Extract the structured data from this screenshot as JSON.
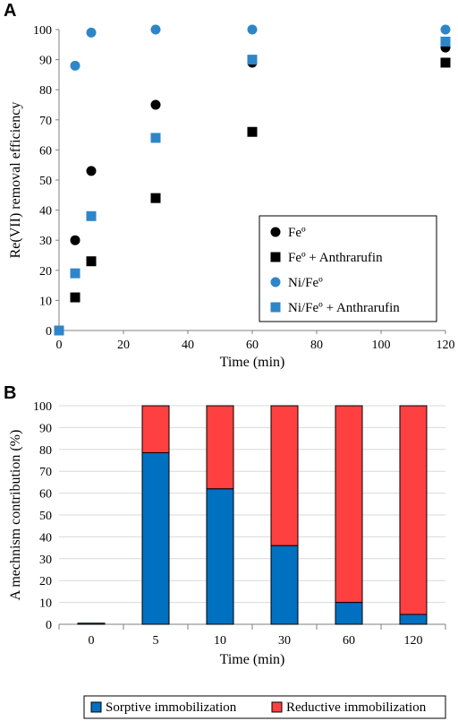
{
  "chart_data": [
    {
      "panel": "A",
      "type": "scatter",
      "xlabel": "Time (min)",
      "ylabel": "Re(VII) removal efficiency",
      "xlim": [
        0,
        120
      ],
      "ylim": [
        0,
        100
      ],
      "xticks": [
        0,
        20,
        40,
        60,
        80,
        100,
        120
      ],
      "yticks": [
        0,
        10,
        20,
        30,
        40,
        50,
        60,
        70,
        80,
        90,
        100
      ],
      "grid": false,
      "legend_position": "bottom-right",
      "series": [
        {
          "name": "Feº",
          "marker": "circle",
          "color": "#000000",
          "points": [
            [
              5,
              30
            ],
            [
              10,
              53
            ],
            [
              30,
              75
            ],
            [
              60,
              89
            ],
            [
              120,
              94
            ]
          ]
        },
        {
          "name": "Feº + Anthrarufin",
          "marker": "square",
          "color": "#000000",
          "points": [
            [
              5,
              11
            ],
            [
              10,
              23
            ],
            [
              30,
              44
            ],
            [
              60,
              66
            ],
            [
              120,
              89
            ]
          ]
        },
        {
          "name": "Ni/Feº",
          "marker": "circle",
          "color": "#2E86C8",
          "points": [
            [
              5,
              88
            ],
            [
              10,
              99
            ],
            [
              30,
              100
            ],
            [
              60,
              100
            ],
            [
              120,
              100
            ]
          ]
        },
        {
          "name": "Ni/Feº + Anthrarufin",
          "marker": "square",
          "color": "#2E86C8",
          "points": [
            [
              0,
              0
            ],
            [
              5,
              19
            ],
            [
              10,
              38
            ],
            [
              30,
              64
            ],
            [
              60,
              90
            ],
            [
              120,
              96
            ]
          ]
        }
      ]
    },
    {
      "panel": "B",
      "type": "bar",
      "stacked": true,
      "xlabel": "Time (min)",
      "ylabel": "A mechnism contribution (%)",
      "ylim": [
        0,
        100
      ],
      "yticks": [
        0,
        10,
        20,
        30,
        40,
        50,
        60,
        70,
        80,
        90,
        100
      ],
      "grid": true,
      "legend_position": "bottom",
      "categories": [
        "0",
        "5",
        "10",
        "30",
        "60",
        "120"
      ],
      "series": [
        {
          "name": "Sorptive immobilization",
          "color": "#0070C0",
          "values": [
            0.5,
            78.5,
            62,
            36,
            10,
            4.5
          ]
        },
        {
          "name": "Reductive immobilization",
          "color": "#FF4040",
          "values": [
            0,
            21.5,
            38,
            64,
            90,
            95.5
          ]
        }
      ]
    }
  ]
}
